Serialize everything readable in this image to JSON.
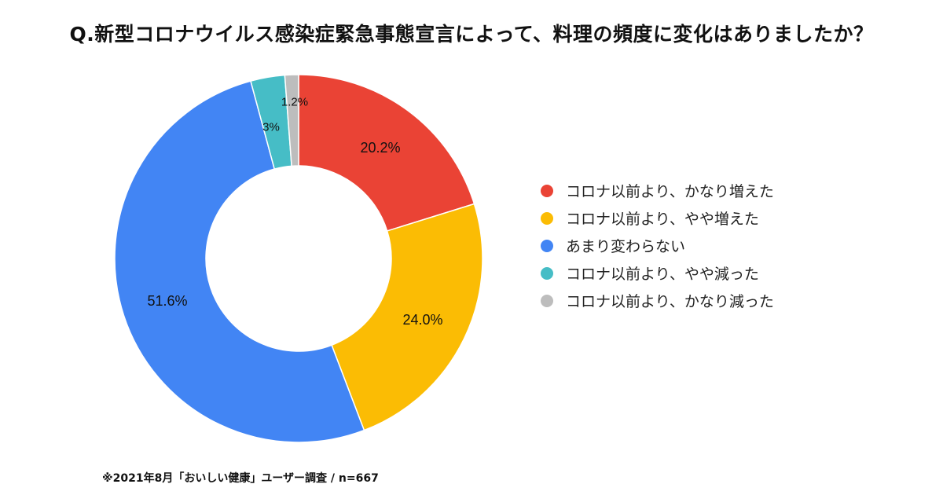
{
  "header": {
    "title": "Q.新型コロナウイルス感染症緊急事態宣言によって、料理の頻度に変化はありましたか？"
  },
  "footer": {
    "note": "※2021年8月「おいしい健康」ユーザー調査 /  n=667"
  },
  "chart_data": {
    "type": "pie",
    "style": "donut",
    "start_angle_deg": 0,
    "direction": "clockwise",
    "legend_position": "right",
    "labels": [
      "コロナ以前より、かなり増えた",
      "コロナ以前より、やや増えた",
      "あまり変わらない",
      "コロナ以前より、やや減った",
      "コロナ以前より、かなり減った"
    ],
    "values": [
      20.2,
      24.0,
      51.6,
      3.0,
      1.2
    ],
    "value_labels": [
      "20.2%",
      "24.0%",
      "51.6%",
      "3%",
      "1.2%"
    ],
    "colors": [
      "#EA4335",
      "#FBBC04",
      "#4285F4",
      "#46BDC6",
      "#BDBDBD"
    ]
  }
}
